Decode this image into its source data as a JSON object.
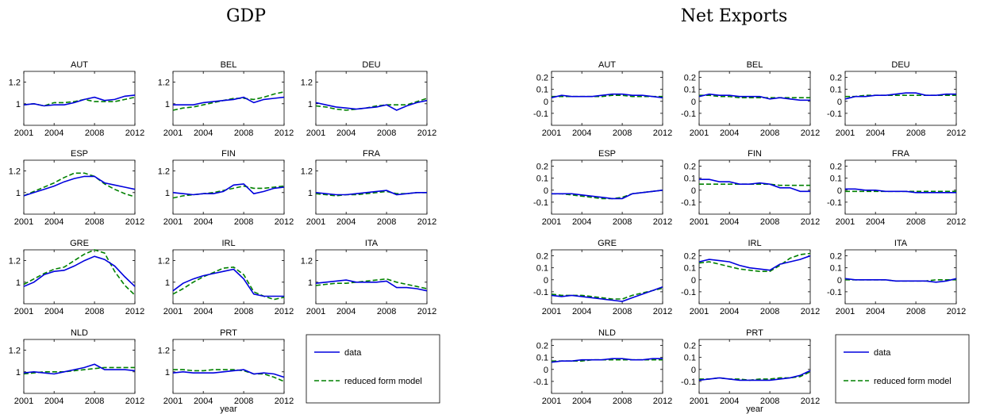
{
  "panels": [
    {
      "title": "GDP"
    },
    {
      "title": "Net Exports"
    }
  ],
  "legend": {
    "data_label": "data",
    "model_label": "reduced form model"
  },
  "colors": {
    "data": "#0000dd",
    "model": "#008000",
    "axes": "#000000"
  },
  "chart_data": [
    {
      "type": "line",
      "title": "GDP",
      "xlabel": "year",
      "x": [
        2001,
        2002,
        2003,
        2004,
        2005,
        2006,
        2007,
        2008,
        2009,
        2010,
        2011,
        2012
      ],
      "xticks": [
        "2001",
        "2004",
        "2008",
        "2012"
      ],
      "xlim": [
        2001,
        2012
      ],
      "ylim": [
        0.8,
        1.3
      ],
      "yticks": [
        "1",
        "1.2"
      ],
      "grid": false,
      "legend_position": "bottom-right cell",
      "subplots": [
        {
          "name": "AUT",
          "data": [
            0.99,
            1.0,
            0.98,
            0.99,
            0.99,
            1.01,
            1.04,
            1.06,
            1.03,
            1.04,
            1.07,
            1.08
          ],
          "model": [
            0.99,
            1.0,
            0.98,
            1.01,
            1.01,
            1.02,
            1.04,
            1.02,
            1.02,
            1.02,
            1.04,
            1.06
          ]
        },
        {
          "name": "BEL",
          "data": [
            0.99,
            0.99,
            0.99,
            1.01,
            1.02,
            1.03,
            1.04,
            1.06,
            1.01,
            1.04,
            1.05,
            1.06
          ],
          "model": [
            0.94,
            0.96,
            0.97,
            0.99,
            1.01,
            1.03,
            1.05,
            1.05,
            1.04,
            1.06,
            1.09,
            1.11
          ]
        },
        {
          "name": "DEU",
          "data": [
            1.01,
            0.99,
            0.97,
            0.96,
            0.95,
            0.96,
            0.97,
            0.99,
            0.94,
            0.98,
            1.01,
            1.03
          ],
          "model": [
            0.98,
            0.97,
            0.95,
            0.94,
            0.95,
            0.96,
            0.98,
            0.99,
            0.99,
            0.99,
            1.02,
            1.05
          ]
        },
        {
          "name": "ESP",
          "data": [
            0.97,
            1.0,
            1.03,
            1.06,
            1.1,
            1.13,
            1.15,
            1.15,
            1.09,
            1.07,
            1.05,
            1.03
          ],
          "model": [
            0.97,
            1.01,
            1.05,
            1.09,
            1.14,
            1.18,
            1.18,
            1.15,
            1.08,
            1.03,
            0.99,
            0.96
          ]
        },
        {
          "name": "FIN",
          "data": [
            1.0,
            0.99,
            0.98,
            0.99,
            0.99,
            1.01,
            1.07,
            1.08,
            0.99,
            1.01,
            1.04,
            1.05
          ],
          "model": [
            0.95,
            0.97,
            0.98,
            0.99,
            1.0,
            1.02,
            1.04,
            1.06,
            1.04,
            1.04,
            1.05,
            1.06
          ]
        },
        {
          "name": "FRA",
          "data": [
            1.0,
            0.99,
            0.98,
            0.98,
            0.99,
            1.0,
            1.01,
            1.02,
            0.98,
            0.99,
            1.0,
            1.0
          ],
          "model": [
            0.99,
            0.98,
            0.97,
            0.98,
            0.98,
            0.99,
            1.0,
            1.01,
            0.99,
            0.99,
            1.0,
            1.0
          ]
        },
        {
          "name": "GRE",
          "data": [
            0.96,
            1.0,
            1.07,
            1.1,
            1.11,
            1.15,
            1.2,
            1.24,
            1.21,
            1.15,
            1.05,
            0.96
          ],
          "model": [
            0.98,
            1.03,
            1.08,
            1.12,
            1.14,
            1.2,
            1.26,
            1.3,
            1.27,
            1.1,
            0.97,
            0.88
          ]
        },
        {
          "name": "IRL",
          "data": [
            0.92,
            0.99,
            1.03,
            1.06,
            1.08,
            1.1,
            1.12,
            1.03,
            0.89,
            0.87,
            0.87,
            0.87
          ],
          "model": [
            0.89,
            0.94,
            1.0,
            1.05,
            1.09,
            1.13,
            1.14,
            1.07,
            0.91,
            0.87,
            0.84,
            0.86
          ]
        },
        {
          "name": "ITA",
          "data": [
            0.99,
            1.0,
            1.01,
            1.02,
            1.0,
            1.0,
            1.0,
            1.01,
            0.95,
            0.95,
            0.94,
            0.92
          ],
          "model": [
            0.97,
            0.98,
            0.99,
            0.99,
            1.0,
            1.01,
            1.02,
            1.03,
            1.0,
            0.98,
            0.96,
            0.94
          ]
        },
        {
          "name": "NLD",
          "data": [
            0.99,
            1.0,
            0.99,
            0.98,
            1.0,
            1.02,
            1.04,
            1.07,
            1.02,
            1.02,
            1.02,
            1.01
          ],
          "model": [
            0.98,
            0.99,
            1.0,
            1.0,
            1.0,
            1.01,
            1.02,
            1.03,
            1.04,
            1.04,
            1.04,
            1.04
          ]
        },
        {
          "name": "PRT",
          "data": [
            0.99,
            1.0,
            0.99,
            0.99,
            0.99,
            1.0,
            1.01,
            1.02,
            0.98,
            0.99,
            0.98,
            0.95
          ],
          "model": [
            1.02,
            1.02,
            1.01,
            1.01,
            1.02,
            1.02,
            1.02,
            1.01,
            0.98,
            0.98,
            0.95,
            0.91
          ]
        }
      ]
    },
    {
      "type": "line",
      "title": "Net Exports",
      "xlabel": "year",
      "x": [
        2001,
        2002,
        2003,
        2004,
        2005,
        2006,
        2007,
        2008,
        2009,
        2010,
        2011,
        2012
      ],
      "xticks": [
        "2001",
        "2004",
        "2008",
        "2012"
      ],
      "xlim": [
        2001,
        2012
      ],
      "ylim": [
        -0.2,
        0.25
      ],
      "yticks": [
        "-0.1",
        "0",
        "0.1",
        "0.2"
      ],
      "grid": false,
      "legend_position": "bottom-right cell",
      "subplots": [
        {
          "name": "AUT",
          "data": [
            0.03,
            0.05,
            0.04,
            0.04,
            0.04,
            0.05,
            0.06,
            0.06,
            0.05,
            0.05,
            0.04,
            0.03
          ],
          "model": [
            0.04,
            0.04,
            0.04,
            0.04,
            0.04,
            0.04,
            0.05,
            0.05,
            0.04,
            0.04,
            0.04,
            0.04
          ]
        },
        {
          "name": "BEL",
          "data": [
            0.04,
            0.06,
            0.05,
            0.05,
            0.04,
            0.04,
            0.04,
            0.02,
            0.03,
            0.02,
            0.01,
            0.01
          ],
          "model": [
            0.05,
            0.05,
            0.04,
            0.04,
            0.03,
            0.03,
            0.03,
            0.03,
            0.03,
            0.03,
            0.03,
            0.03
          ]
        },
        {
          "name": "DEU",
          "data": [
            0.02,
            0.04,
            0.04,
            0.05,
            0.05,
            0.06,
            0.07,
            0.07,
            0.05,
            0.05,
            0.06,
            0.06
          ],
          "model": [
            0.04,
            0.04,
            0.05,
            0.05,
            0.05,
            0.05,
            0.05,
            0.05,
            0.05,
            0.05,
            0.05,
            0.05
          ]
        },
        {
          "name": "ESP",
          "data": [
            -0.03,
            -0.03,
            -0.03,
            -0.04,
            -0.05,
            -0.06,
            -0.07,
            -0.07,
            -0.03,
            -0.02,
            -0.01,
            0.0
          ],
          "model": [
            -0.03,
            -0.03,
            -0.04,
            -0.05,
            -0.06,
            -0.07,
            -0.07,
            -0.06,
            -0.03,
            -0.02,
            -0.01,
            0.0
          ]
        },
        {
          "name": "FIN",
          "data": [
            0.09,
            0.09,
            0.07,
            0.07,
            0.05,
            0.05,
            0.06,
            0.05,
            0.02,
            0.02,
            -0.01,
            -0.01
          ],
          "model": [
            0.05,
            0.05,
            0.05,
            0.05,
            0.05,
            0.05,
            0.05,
            0.05,
            0.04,
            0.04,
            0.04,
            0.04
          ]
        },
        {
          "name": "FRA",
          "data": [
            0.01,
            0.01,
            0.0,
            0.0,
            -0.01,
            -0.01,
            -0.01,
            -0.02,
            -0.02,
            -0.02,
            -0.02,
            -0.02
          ],
          "model": [
            -0.01,
            -0.01,
            -0.01,
            -0.01,
            -0.01,
            -0.01,
            -0.01,
            -0.01,
            -0.01,
            -0.01,
            -0.01,
            -0.01
          ]
        },
        {
          "name": "GRE",
          "data": [
            -0.13,
            -0.14,
            -0.13,
            -0.14,
            -0.15,
            -0.16,
            -0.17,
            -0.18,
            -0.15,
            -0.12,
            -0.09,
            -0.06
          ],
          "model": [
            -0.12,
            -0.13,
            -0.13,
            -0.13,
            -0.14,
            -0.15,
            -0.16,
            -0.16,
            -0.13,
            -0.11,
            -0.09,
            -0.07
          ]
        },
        {
          "name": "IRL",
          "data": [
            0.15,
            0.17,
            0.16,
            0.15,
            0.12,
            0.1,
            0.09,
            0.08,
            0.13,
            0.15,
            0.17,
            0.2
          ],
          "model": [
            0.14,
            0.15,
            0.13,
            0.11,
            0.09,
            0.08,
            0.07,
            0.07,
            0.12,
            0.18,
            0.21,
            0.22
          ]
        },
        {
          "name": "ITA",
          "data": [
            0.01,
            0.0,
            0.0,
            0.0,
            0.0,
            -0.01,
            -0.01,
            -0.01,
            -0.01,
            -0.02,
            -0.01,
            0.01
          ],
          "model": [
            0.0,
            0.0,
            0.0,
            0.0,
            0.0,
            -0.01,
            -0.01,
            -0.01,
            -0.01,
            0.0,
            0.0,
            0.0
          ]
        },
        {
          "name": "NLD",
          "data": [
            0.06,
            0.07,
            0.07,
            0.08,
            0.08,
            0.08,
            0.09,
            0.09,
            0.08,
            0.08,
            0.09,
            0.09
          ],
          "model": [
            0.07,
            0.07,
            0.07,
            0.07,
            0.08,
            0.08,
            0.08,
            0.08,
            0.08,
            0.08,
            0.08,
            0.08
          ]
        },
        {
          "name": "PRT",
          "data": [
            -0.09,
            -0.08,
            -0.07,
            -0.08,
            -0.09,
            -0.09,
            -0.09,
            -0.09,
            -0.08,
            -0.07,
            -0.05,
            -0.01
          ],
          "model": [
            -0.08,
            -0.08,
            -0.07,
            -0.08,
            -0.08,
            -0.09,
            -0.08,
            -0.08,
            -0.07,
            -0.07,
            -0.06,
            -0.02
          ]
        }
      ]
    }
  ]
}
